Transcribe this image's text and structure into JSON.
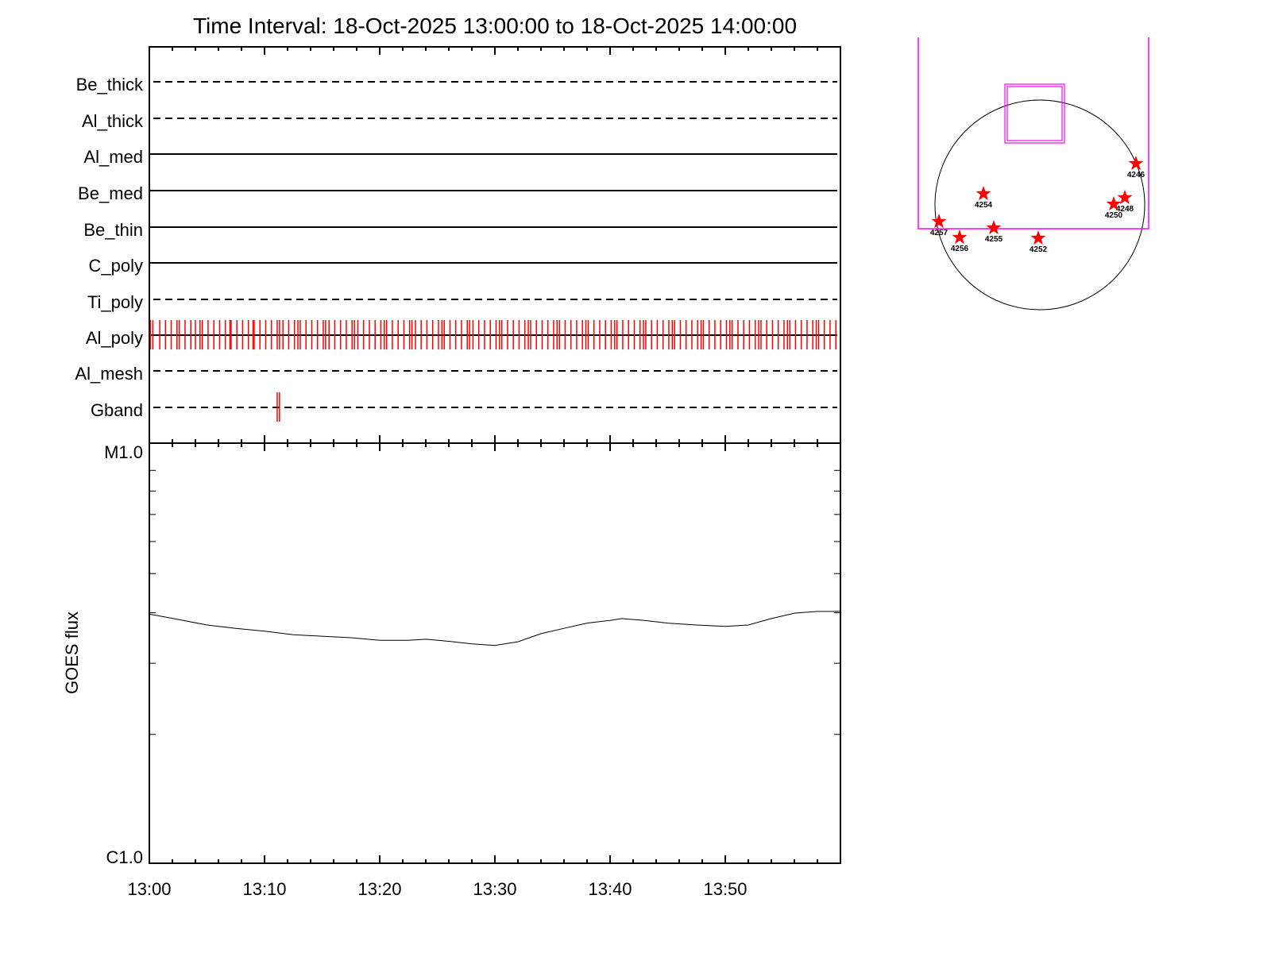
{
  "title": "Time Interval: 18-Oct-2025 13:00:00 to 18-Oct-2025 14:00:00",
  "chart_data": [
    {
      "type": "timeline",
      "xlim_minutes": [
        0,
        60
      ],
      "x_tick_labels": [
        "13:00",
        "13:10",
        "13:20",
        "13:30",
        "13:40",
        "13:50"
      ],
      "rows": [
        {
          "label": "Be_thick",
          "style": "dashed",
          "events": []
        },
        {
          "label": "Al_thick",
          "style": "dashed",
          "events": []
        },
        {
          "label": "Al_med",
          "style": "solid",
          "events": []
        },
        {
          "label": "Be_med",
          "style": "solid",
          "events": []
        },
        {
          "label": "Be_thin",
          "style": "solid",
          "events": []
        },
        {
          "label": "C_poly",
          "style": "solid",
          "events": []
        },
        {
          "label": "Ti_poly",
          "style": "dashed",
          "events": []
        },
        {
          "label": "Al_poly",
          "style": "solid",
          "events": [
            0.1,
            0.3,
            0.9,
            1.4,
            1.9,
            2.4,
            2.6,
            3.1,
            3.6,
            4.0,
            4.4,
            4.6,
            5.1,
            5.6,
            6.1,
            6.6,
            7.0,
            7.1,
            7.6,
            8.1,
            8.6,
            9.0,
            9.1,
            9.6,
            10.1,
            10.6,
            11.1,
            11.3,
            11.6,
            12.1,
            12.6,
            12.9,
            13.1,
            13.6,
            14.1,
            14.6,
            15.1,
            15.3,
            15.6,
            16.1,
            16.6,
            17.1,
            17.6,
            17.8,
            18.1,
            18.6,
            19.1,
            19.6,
            20.1,
            20.4,
            20.6,
            21.1,
            21.6,
            22.1,
            22.6,
            22.8,
            23.1,
            23.6,
            24.1,
            24.6,
            25.1,
            25.4,
            25.6,
            26.1,
            26.6,
            27.1,
            27.6,
            27.8,
            28.1,
            28.6,
            29.1,
            29.6,
            30.1,
            30.4,
            30.6,
            31.1,
            31.6,
            32.1,
            32.6,
            32.9,
            33.1,
            33.6,
            34.1,
            34.6,
            35.1,
            35.4,
            35.6,
            36.1,
            36.6,
            37.1,
            37.6,
            37.9,
            38.1,
            38.6,
            39.1,
            39.6,
            40.1,
            40.4,
            40.6,
            41.1,
            41.6,
            42.1,
            42.6,
            42.9,
            43.1,
            43.6,
            44.1,
            44.6,
            45.1,
            45.4,
            45.6,
            46.1,
            46.6,
            47.1,
            47.6,
            47.9,
            48.1,
            48.6,
            49.1,
            49.6,
            50.1,
            50.4,
            50.6,
            51.1,
            51.6,
            52.1,
            52.6,
            52.9,
            53.1,
            53.6,
            54.1,
            54.6,
            55.1,
            55.4,
            55.6,
            56.1,
            56.6,
            57.1,
            57.6,
            57.9,
            58.1,
            58.6,
            59.1,
            59.6
          ]
        },
        {
          "label": "Al_mesh",
          "style": "dashed",
          "events": []
        },
        {
          "label": "Gband",
          "style": "dashed",
          "events": [
            11.1,
            11.3
          ]
        }
      ],
      "event_color": "#ff0000"
    },
    {
      "type": "line",
      "ylabel": "GOES flux",
      "y_scale": "log",
      "ylim": [
        1e-06,
        1e-05
      ],
      "y_tick_labels": [
        "C1.0",
        "M1.0"
      ],
      "xlim_minutes": [
        0,
        60
      ],
      "x_tick_labels": [
        "13:00",
        "13:10",
        "13:20",
        "13:30",
        "13:40",
        "13:50"
      ],
      "x": [
        0,
        2.5,
        5,
        7.5,
        10,
        12.5,
        15,
        17.5,
        20,
        22.5,
        24,
        26,
        28,
        30,
        32,
        34,
        36,
        38,
        40,
        41,
        43,
        45,
        47.5,
        50,
        52,
        54,
        56,
        58,
        60
      ],
      "y": [
        3.97e-06,
        3.85e-06,
        3.73e-06,
        3.66e-06,
        3.6e-06,
        3.53e-06,
        3.5e-06,
        3.47e-06,
        3.42e-06,
        3.42e-06,
        3.44e-06,
        3.4e-06,
        3.35e-06,
        3.32e-06,
        3.39e-06,
        3.55e-06,
        3.66e-06,
        3.77e-06,
        3.83e-06,
        3.87e-06,
        3.83e-06,
        3.77e-06,
        3.73e-06,
        3.7e-06,
        3.73e-06,
        3.87e-06,
        3.99e-06,
        4.03e-06,
        4.03e-06
      ]
    }
  ],
  "map": {
    "frame_color": "#ff00ff",
    "star_color": "#ff0000",
    "regions": [
      "4246",
      "4254",
      "4248",
      "4250",
      "4257",
      "4255",
      "4256",
      "4252"
    ]
  }
}
